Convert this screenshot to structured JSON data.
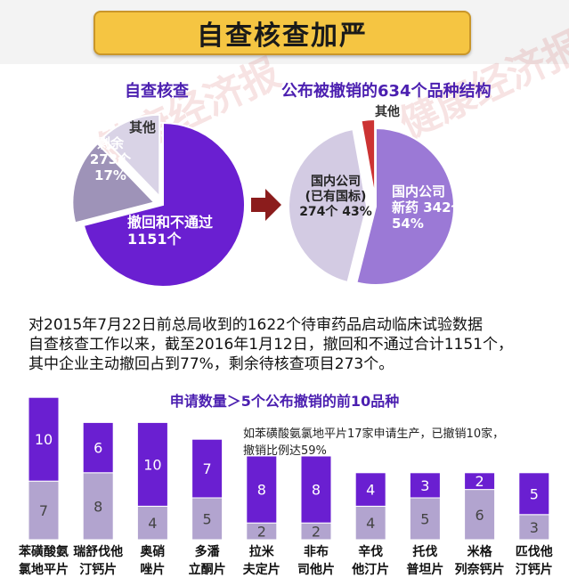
{
  "header": {
    "title": "自查核查加严"
  },
  "watermark": [
    "健康经济报",
    "健康经济报"
  ],
  "left_pie": {
    "title": "自查核查",
    "slices": [
      {
        "name": "撤回和不通过",
        "value": 1151,
        "label_line1": "撤回和不通过",
        "label_line2": "1151个",
        "color": "#6a1fd1"
      },
      {
        "name": "剩余",
        "value": 273,
        "label_line1": "剩余",
        "label_line2": "273个",
        "label_line3": "17%",
        "color": "#9e93b8"
      },
      {
        "name": "其他",
        "value": 198,
        "label_line1": "其他",
        "color": "#d9d3e6"
      }
    ]
  },
  "right_pie": {
    "title": "公布被撤销的634个品种结构",
    "slices": [
      {
        "name": "国内公司新药",
        "value": 342,
        "label_line1": "国内公司",
        "label_line2": "新药 342个",
        "label_line3": "54%",
        "color": "#9b79d6"
      },
      {
        "name": "国内公司(已有国标)",
        "value": 274,
        "label_line1": "国内公司",
        "label_line2": "(已有国标)",
        "label_line3": "274个 43%",
        "color": "#d3cbe3"
      },
      {
        "name": "其他",
        "value": 18,
        "label_line1": "其他",
        "color": "#cc3333"
      }
    ]
  },
  "arrow_color": "#8b1c1c",
  "paragraph": {
    "line1": "对2015年7月22日前总局收到的1622个待审药品启动临床试验数据",
    "line2": "自查核查工作以来，截至2016年1月12日，撤回和不通过合计1151个，",
    "line3": "其中企业主动撤回占到77%，剩余待核查项目273个。"
  },
  "chart_data": {
    "type": "bar",
    "title": "申请数量＞5个公布撤销的前10品种",
    "categories": [
      [
        "苯磺酸氨",
        "氯地平片"
      ],
      [
        "瑞舒伐他",
        "汀钙片"
      ],
      [
        "奥硝",
        "唑片"
      ],
      [
        "多潘",
        "立酮片"
      ],
      [
        "拉米",
        "夫定片"
      ],
      [
        "非布",
        "司他片"
      ],
      [
        "辛伐",
        "他汀片"
      ],
      [
        "托伐",
        "普坦片"
      ],
      [
        "米格",
        "列奈钙片"
      ],
      [
        "匹伐他",
        "汀钙片"
      ]
    ],
    "series": [
      {
        "values": [
          7,
          8,
          4,
          5,
          2,
          2,
          4,
          5,
          6,
          3
        ],
        "color": "#b2a4cf"
      },
      {
        "values": [
          10,
          6,
          10,
          7,
          8,
          8,
          4,
          3,
          2,
          5
        ],
        "color": "#6a1fd1"
      }
    ],
    "stacked": true,
    "annotation_line1": "如苯磺酸氨氯地平片17家申请生产，已撤销10家，",
    "annotation_line2": "撤销比例达59%"
  }
}
